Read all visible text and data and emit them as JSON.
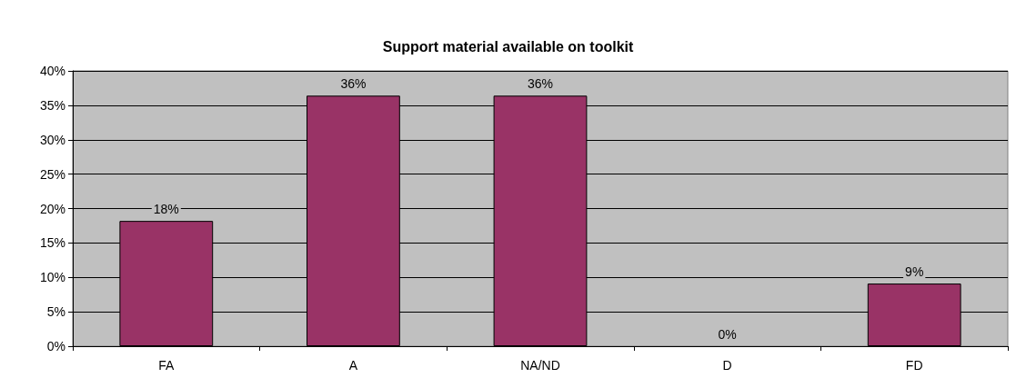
{
  "chart_data": {
    "type": "bar",
    "title": "Support material available on toolkit",
    "categories": [
      "FA",
      "A",
      "NA/ND",
      "D",
      "FD"
    ],
    "values": [
      18.2,
      36.4,
      36.4,
      0,
      9.1
    ],
    "value_labels": [
      "18%",
      "36%",
      "36%",
      "0%",
      "9%"
    ],
    "color": "#993366",
    "ylim": [
      0,
      40
    ],
    "yticks": [
      {
        "value": 0,
        "label": "0%"
      },
      {
        "value": 5,
        "label": "5%"
      },
      {
        "value": 10,
        "label": "10%"
      },
      {
        "value": 15,
        "label": "15%"
      },
      {
        "value": 20,
        "label": "20%"
      },
      {
        "value": 25,
        "label": "25%"
      },
      {
        "value": 30,
        "label": "30%"
      },
      {
        "value": 35,
        "label": "35%"
      },
      {
        "value": 40,
        "label": "40%"
      }
    ],
    "grid": "y"
  }
}
